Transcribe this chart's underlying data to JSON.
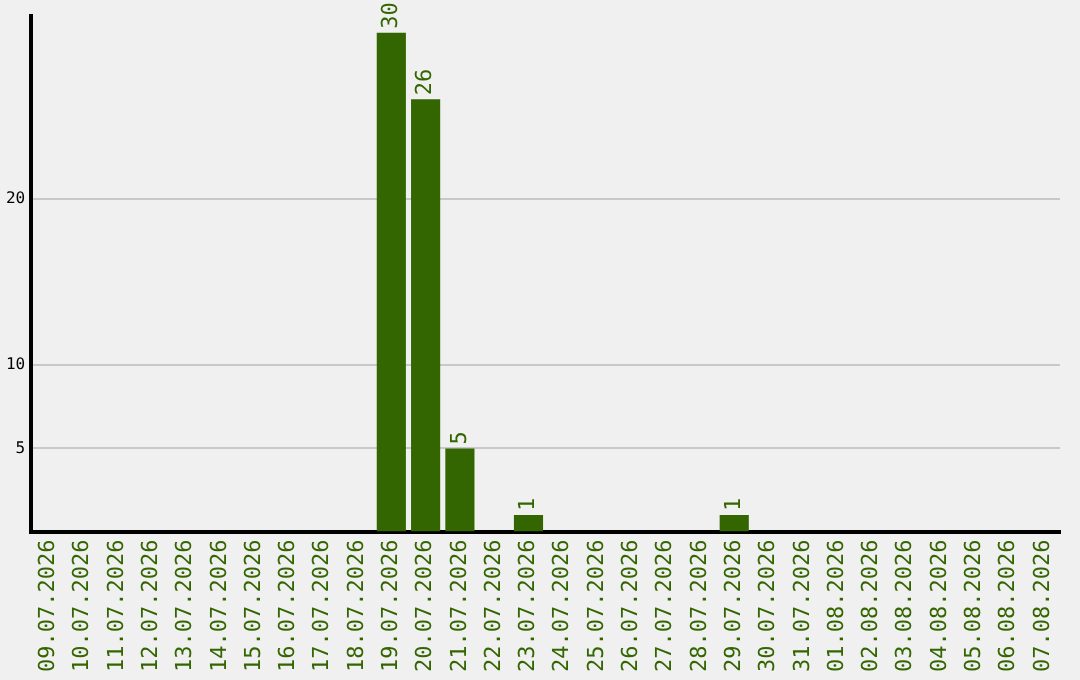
{
  "chart_data": {
    "type": "bar",
    "categories": [
      "09.07.2026",
      "10.07.2026",
      "11.07.2026",
      "12.07.2026",
      "13.07.2026",
      "14.07.2026",
      "15.07.2026",
      "16.07.2026",
      "17.07.2026",
      "18.07.2026",
      "19.07.2026",
      "20.07.2026",
      "21.07.2026",
      "22.07.2026",
      "23.07.2026",
      "24.07.2026",
      "25.07.2026",
      "26.07.2026",
      "27.07.2026",
      "28.07.2026",
      "29.07.2026",
      "30.07.2026",
      "31.07.2026",
      "01.08.2026",
      "02.08.2026",
      "03.08.2026",
      "04.08.2026",
      "05.08.2026",
      "06.08.2026",
      "07.08.2026"
    ],
    "values": [
      0,
      0,
      0,
      0,
      0,
      0,
      0,
      0,
      0,
      0,
      30,
      26,
      5,
      0,
      1,
      0,
      0,
      0,
      0,
      0,
      1,
      0,
      0,
      0,
      0,
      0,
      0,
      0,
      0,
      0
    ],
    "value_labels": [
      null,
      null,
      null,
      null,
      null,
      null,
      null,
      null,
      null,
      null,
      "30",
      "26",
      "5",
      null,
      "1",
      null,
      null,
      null,
      null,
      null,
      "1",
      null,
      null,
      null,
      null,
      null,
      null,
      null,
      null,
      null
    ],
    "color": "#336600",
    "ylim": [
      0,
      31
    ],
    "yticks": [
      5,
      10,
      20
    ],
    "grid": "y",
    "legend": false
  }
}
